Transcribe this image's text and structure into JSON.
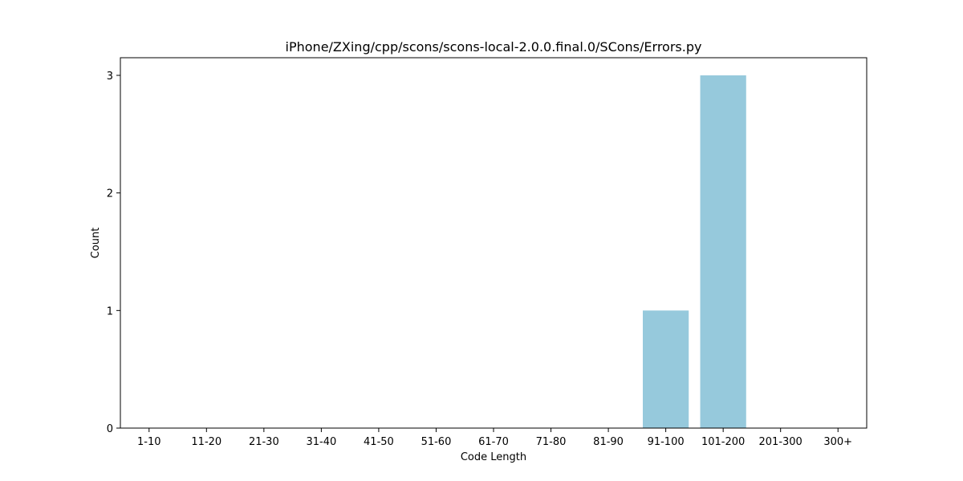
{
  "chart_data": {
    "type": "bar",
    "title": "iPhone/ZXing/cpp/scons/scons-local-2.0.0.final.0/SCons/Errors.py",
    "xlabel": "Code Length",
    "ylabel": "Count",
    "categories": [
      "1-10",
      "11-20",
      "21-30",
      "31-40",
      "41-50",
      "51-60",
      "61-70",
      "71-80",
      "81-90",
      "91-100",
      "101-200",
      "201-300",
      "300+"
    ],
    "values": [
      0,
      0,
      0,
      0,
      0,
      0,
      0,
      0,
      0,
      1,
      3,
      0,
      0
    ],
    "ylim": [
      0,
      3.15
    ],
    "yticks": [
      0,
      1,
      2,
      3
    ],
    "grid": false,
    "bar_color": "#96c9dc"
  }
}
